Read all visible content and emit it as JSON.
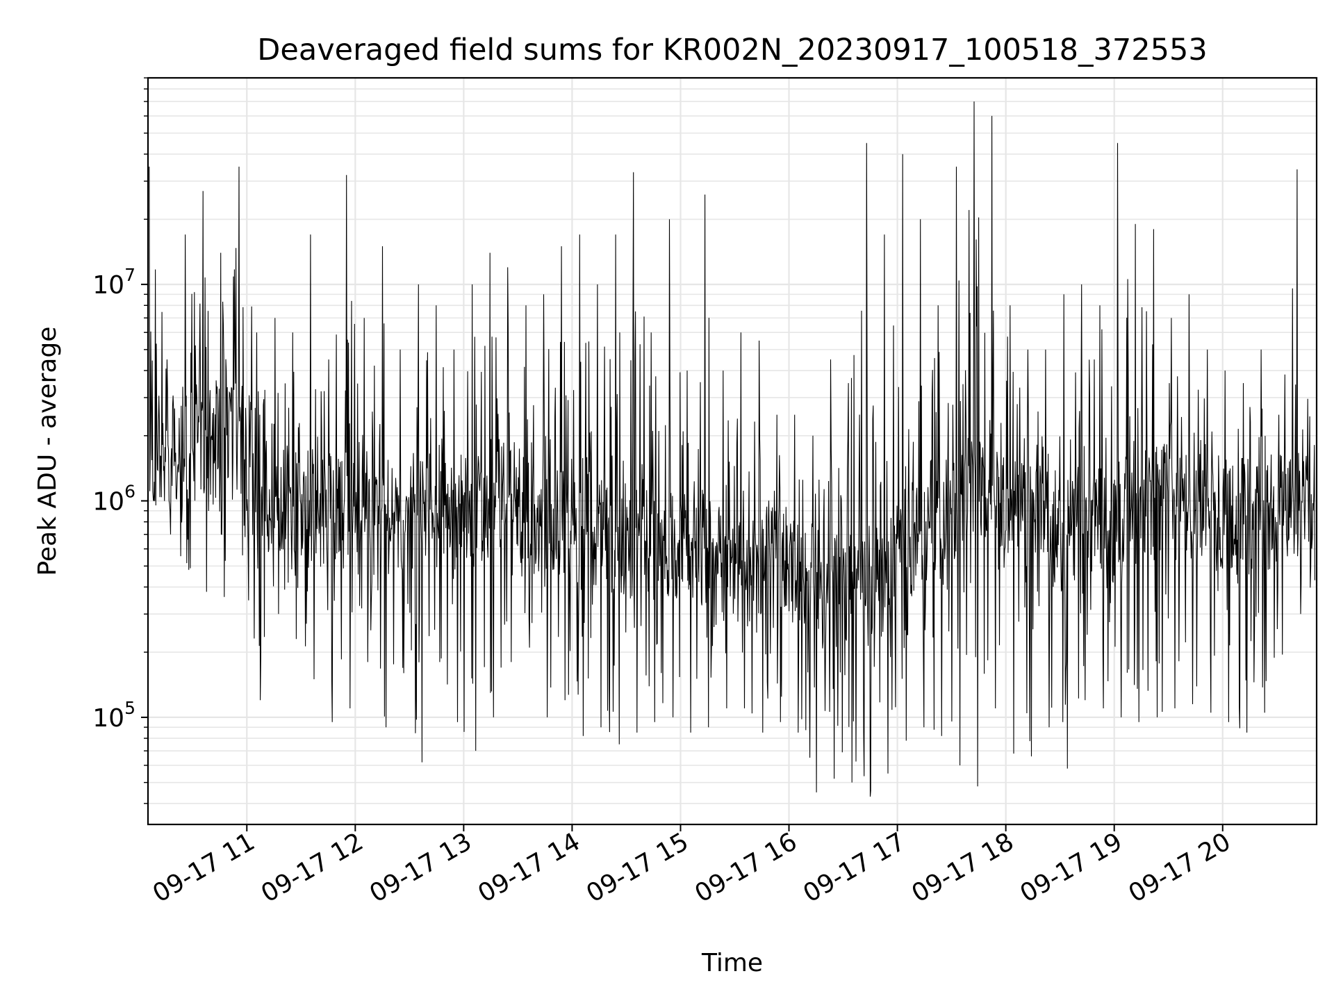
{
  "chart_data": {
    "type": "line",
    "title": "Deaveraged field sums for KR002N_20230917_100518_372553",
    "xlabel": "Time",
    "ylabel": "Peak ADU - average",
    "yscale": "log",
    "ylim": [
      32000,
      90000000
    ],
    "xlim": [
      "2023-09-17 10:05:18",
      "2023-09-17 20:52:00"
    ],
    "grid": true,
    "line_color": "#000000",
    "grid_color": "#e6e6e6",
    "x_ticks": [
      {
        "value": "2023-09-17 11:00",
        "label": "09-17 11"
      },
      {
        "value": "2023-09-17 12:00",
        "label": "09-17 12"
      },
      {
        "value": "2023-09-17 13:00",
        "label": "09-17 13"
      },
      {
        "value": "2023-09-17 14:00",
        "label": "09-17 14"
      },
      {
        "value": "2023-09-17 15:00",
        "label": "09-17 15"
      },
      {
        "value": "2023-09-17 16:00",
        "label": "09-17 16"
      },
      {
        "value": "2023-09-17 17:00",
        "label": "09-17 17"
      },
      {
        "value": "2023-09-17 18:00",
        "label": "09-17 18"
      },
      {
        "value": "2023-09-17 19:00",
        "label": "09-17 19"
      },
      {
        "value": "2023-09-17 20:00",
        "label": "09-17 20"
      }
    ],
    "y_ticks": [
      {
        "value": 100000,
        "base": "10",
        "exp": "5"
      },
      {
        "value": 1000000,
        "base": "10",
        "exp": "6"
      },
      {
        "value": 10000000,
        "base": "10",
        "exp": "7"
      }
    ],
    "series": [
      {
        "x": [
          "2023-09-17 10:06",
          "2023-09-17 10:10",
          "2023-09-17 10:20",
          "2023-09-17 10:30",
          "2023-09-17 10:40",
          "2023-09-17 10:50",
          "2023-09-17 11:00",
          "2023-09-17 11:10",
          "2023-09-17 11:20",
          "2023-09-17 11:30",
          "2023-09-17 11:40",
          "2023-09-17 11:50",
          "2023-09-17 12:00",
          "2023-09-17 12:10",
          "2023-09-17 12:20",
          "2023-09-17 12:30",
          "2023-09-17 12:40",
          "2023-09-17 12:50",
          "2023-09-17 13:00",
          "2023-09-17 13:10",
          "2023-09-17 13:20",
          "2023-09-17 13:30",
          "2023-09-17 13:40",
          "2023-09-17 13:50",
          "2023-09-17 14:00",
          "2023-09-17 14:10",
          "2023-09-17 14:20",
          "2023-09-17 14:30",
          "2023-09-17 14:40",
          "2023-09-17 14:50",
          "2023-09-17 15:00",
          "2023-09-17 15:10",
          "2023-09-17 15:20",
          "2023-09-17 15:30",
          "2023-09-17 15:40",
          "2023-09-17 15:50",
          "2023-09-17 16:00",
          "2023-09-17 16:10",
          "2023-09-17 16:20",
          "2023-09-17 16:30",
          "2023-09-17 16:40",
          "2023-09-17 16:50",
          "2023-09-17 17:00",
          "2023-09-17 17:10",
          "2023-09-17 17:20",
          "2023-09-17 17:30",
          "2023-09-17 17:40",
          "2023-09-17 17:50",
          "2023-09-17 18:00",
          "2023-09-17 18:10",
          "2023-09-17 18:20",
          "2023-09-17 18:30",
          "2023-09-17 18:40",
          "2023-09-17 18:50",
          "2023-09-17 19:00",
          "2023-09-17 19:10",
          "2023-09-17 19:20",
          "2023-09-17 19:30",
          "2023-09-17 19:40",
          "2023-09-17 19:50",
          "2023-09-17 20:00",
          "2023-09-17 20:10",
          "2023-09-17 20:20",
          "2023-09-17 20:30",
          "2023-09-17 20:40",
          "2023-09-17 20:51"
        ],
        "lo": [
          1100000,
          700000,
          480000,
          380000,
          360000,
          560000,
          120000,
          300000,
          230000,
          150000,
          95000,
          110000,
          180000,
          90000,
          160000,
          62000,
          180000,
          95000,
          70000,
          100000,
          180000,
          210000,
          100000,
          120000,
          82000,
          90000,
          75000,
          85000,
          95000,
          100000,
          85000,
          90000,
          110000,
          110000,
          85000,
          95000,
          85000,
          45000,
          52000,
          50000,
          43000,
          55000,
          78000,
          90000,
          82000,
          60000,
          48000,
          110000,
          68000,
          66000,
          90000,
          58000,
          120000,
          110000,
          100000,
          95000,
          100000,
          110000,
          115000,
          105000,
          95000,
          85000,
          105000,
          195000,
          300000,
          430000
        ],
        "mid": [
          1500000,
          1800000,
          1600000,
          2000000,
          2000000,
          2000000,
          1400000,
          1000000,
          1100000,
          900000,
          800000,
          900000,
          800000,
          700000,
          800000,
          900000,
          1000000,
          900000,
          1000000,
          1100000,
          1000000,
          900000,
          800000,
          800000,
          750000,
          700000,
          700000,
          650000,
          650000,
          650000,
          600000,
          600000,
          550000,
          500000,
          500000,
          500000,
          450000,
          400000,
          380000,
          380000,
          400000,
          450000,
          600000,
          700000,
          900000,
          1000000,
          1200000,
          1100000,
          1000000,
          900000,
          800000,
          700000,
          700000,
          750000,
          800000,
          900000,
          1000000,
          1000000,
          900000,
          900000,
          850000,
          850000,
          900000,
          900000,
          950000,
          900000
        ],
        "hi": [
          35000000,
          4500000,
          17000000,
          27000000,
          14000000,
          35000000,
          6000000,
          7000000,
          6000000,
          17000000,
          4500000,
          32000000,
          7000000,
          15000000,
          5000000,
          10000000,
          8000000,
          5000000,
          10000000,
          14000000,
          12000000,
          8000000,
          9000000,
          15000000,
          17000000,
          10000000,
          17000000,
          33000000,
          6000000,
          20000000,
          4000000,
          26000000,
          4000000,
          6000000,
          5500000,
          2500000,
          2500000,
          2000000,
          4500000,
          3500000,
          45000000,
          17000000,
          40000000,
          20000000,
          8000000,
          35000000,
          70000000,
          60000000,
          8000000,
          5000000,
          5000000,
          9000000,
          10000000,
          8000000,
          45000000,
          19000000,
          18000000,
          7000000,
          9000000,
          5000000,
          4000000,
          3500000,
          5000000,
          2500000,
          34000000,
          2000000
        ]
      }
    ]
  }
}
